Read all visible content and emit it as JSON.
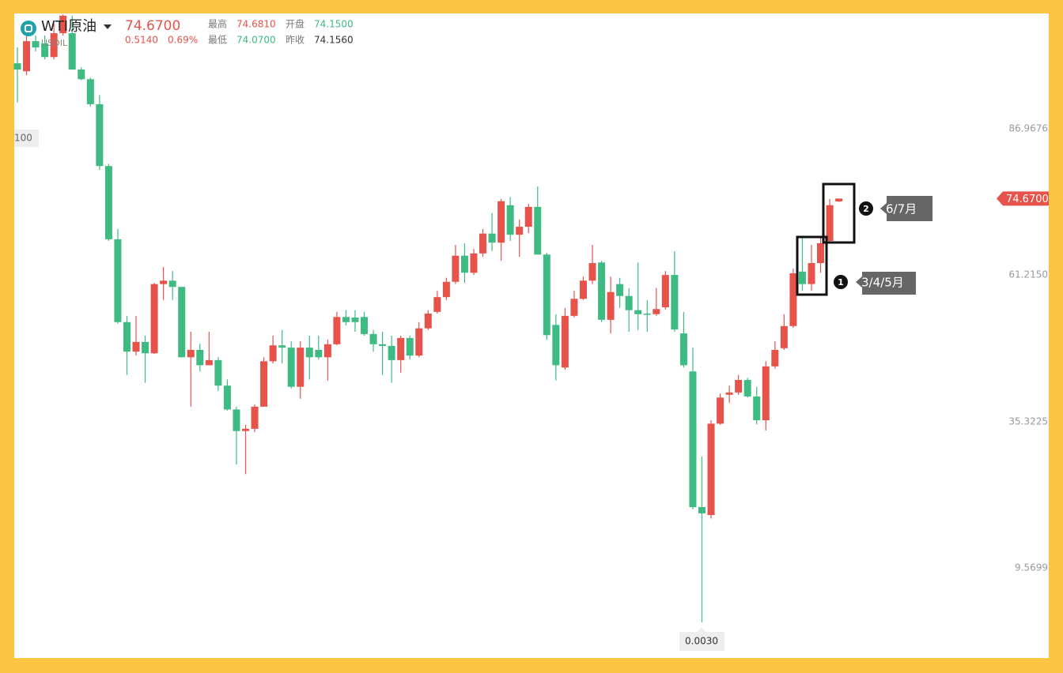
{
  "chart_data": {
    "type": "candlestick",
    "symbol": "WTI原油",
    "code": "USOIL",
    "quote": {
      "last": "74.6700",
      "change": "0.5140",
      "change_pct": "0.69%",
      "high_label": "最高",
      "high": "74.6810",
      "open_label": "开盘",
      "open": "74.1500",
      "low_label": "最低",
      "low": "74.0700",
      "prev_label": "昨收",
      "prev": "74.1560"
    },
    "up_color": "#e5534b",
    "down_color": "#3dbb82",
    "ylim": [
      -6.15,
      107.29
    ],
    "yticks": [
      9.5699,
      35.3225,
      {
        "value": 61.215,
        "label": "61.2150"
      },
      86.9676
    ],
    "left_label": "100",
    "min_label": "0.0030",
    "annotations": [
      {
        "number": "1",
        "text": "3/4/5月"
      },
      {
        "number": "2",
        "text": "6/7月"
      }
    ],
    "open": [
      98.5,
      97.1,
      102.4,
      102.0,
      99.6,
      103.8,
      103.8,
      97.4,
      95.7,
      91.3,
      80.4,
      67.5,
      52.9,
      47.7,
      49.4,
      47.4,
      59.6,
      60.2,
      59.1,
      46.7,
      48.0,
      45.3,
      46.2,
      41.7,
      37.5,
      33.7,
      34.1,
      38.0,
      46.0,
      48.8,
      48.4,
      41.5,
      48.4,
      48.0,
      46.7,
      49.0,
      53.8,
      53.7,
      53.8,
      50.8,
      49.0,
      48.7,
      46.2,
      50.1,
      47.0,
      51.8,
      54.7,
      57.3,
      60.0,
      64.6,
      61.6,
      65.0,
      68.5,
      66.9,
      73.5,
      68.3,
      69.7,
      73.2,
      64.8,
      52.4,
      44.9,
      54.0,
      57.0,
      60.2,
      63.4,
      53.3,
      59.6,
      57.5,
      55.0,
      54.4,
      54.3,
      55.5,
      61.2,
      50.9,
      44.2,
      20.3,
      18.9,
      35.0,
      40.1,
      40.5,
      42.7,
      39.8,
      35.6,
      45.1,
      48.3,
      52.2,
      61.8,
      59.6,
      63.3,
      67.2,
      74.15
    ],
    "high": [
      101.3,
      103.4,
      103.4,
      103.4,
      105.5,
      107.1,
      106.9,
      97.8,
      96.0,
      92.9,
      80.8,
      69.3,
      54.0,
      54.0,
      50.5,
      59.8,
      62.6,
      61.9,
      59.1,
      51.2,
      49.1,
      51.2,
      46.7,
      42.8,
      38.0,
      34.8,
      38.4,
      46.7,
      50.5,
      51.5,
      49.5,
      49.5,
      50.5,
      50.5,
      49.8,
      54.7,
      55.0,
      55.0,
      54.7,
      51.5,
      51.2,
      50.5,
      50.5,
      50.5,
      52.9,
      55.0,
      58.4,
      60.7,
      66.5,
      66.8,
      65.8,
      69.3,
      72.1,
      74.6,
      74.9,
      71.0,
      73.7,
      76.8,
      65.1,
      54.3,
      55.4,
      58.4,
      60.9,
      66.5,
      63.7,
      60.9,
      60.7,
      58.9,
      63.4,
      56.8,
      58.9,
      61.9,
      65.4,
      54.7,
      48.4,
      29.2,
      35.6,
      40.3,
      41.7,
      43.6,
      43.1,
      41.5,
      46.0,
      49.5,
      54.3,
      62.3,
      67.9,
      66.5,
      67.9,
      74.6,
      74.681
    ],
    "low": [
      91.6,
      96.4,
      100.6,
      99.2,
      99.2,
      103.4,
      97.4,
      95.5,
      90.9,
      79.7,
      67.2,
      52.6,
      43.6,
      47.0,
      42.2,
      47.3,
      56.8,
      56.8,
      46.7,
      38.0,
      44.2,
      45.3,
      40.8,
      37.3,
      27.8,
      26.1,
      33.5,
      38.0,
      45.6,
      45.6,
      41.2,
      39.4,
      42.8,
      46.3,
      42.6,
      48.8,
      52.3,
      51.2,
      50.5,
      47.7,
      43.6,
      42.2,
      44.0,
      46.3,
      46.7,
      51.5,
      54.4,
      56.8,
      59.6,
      59.8,
      61.2,
      64.4,
      65.4,
      63.7,
      67.2,
      64.4,
      68.6,
      64.8,
      49.8,
      42.6,
      44.5,
      53.7,
      56.8,
      59.6,
      52.9,
      50.9,
      55.4,
      51.2,
      51.5,
      51.2,
      54.0,
      55.1,
      51.2,
      44.9,
      19.9,
      0.003,
      18.3,
      34.8,
      38.7,
      40.1,
      39.6,
      34.9,
      33.8,
      44.7,
      48.0,
      51.9,
      58.4,
      58.4,
      61.6,
      67.1,
      74.07
    ],
    "close": [
      97.4,
      102.4,
      101.3,
      99.6,
      103.8,
      106.9,
      97.4,
      95.7,
      91.3,
      80.4,
      67.5,
      52.9,
      47.7,
      49.4,
      47.4,
      59.6,
      60.2,
      59.1,
      46.7,
      48.0,
      45.3,
      46.2,
      41.7,
      37.5,
      33.7,
      34.1,
      38.0,
      46.0,
      48.8,
      48.4,
      41.5,
      48.4,
      46.7,
      46.7,
      49.0,
      53.8,
      52.9,
      52.9,
      50.8,
      49.0,
      48.7,
      46.2,
      50.1,
      47.0,
      51.8,
      54.4,
      57.3,
      60.0,
      64.6,
      61.6,
      65.0,
      68.5,
      66.9,
      74.2,
      68.3,
      69.7,
      73.2,
      64.8,
      50.6,
      45.3,
      54.0,
      57.0,
      60.2,
      63.3,
      53.3,
      58.2,
      57.5,
      55.0,
      54.3,
      54.3,
      55.2,
      61.2,
      51.6,
      45.3,
      20.3,
      19.2,
      35.0,
      39.6,
      40.5,
      42.7,
      39.8,
      35.6,
      45.1,
      48.0,
      52.2,
      61.5,
      59.6,
      63.3,
      66.8,
      73.5,
      74.67
    ]
  }
}
